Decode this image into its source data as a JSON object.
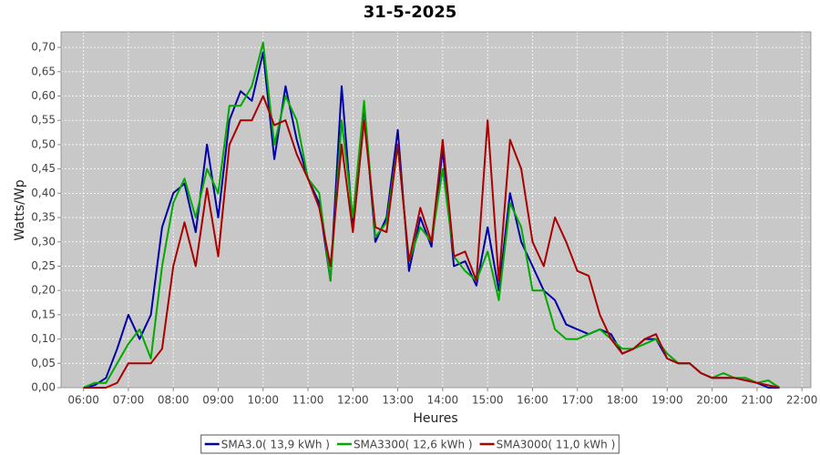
{
  "chart_data": {
    "type": "line",
    "title": "31-5-2025",
    "x_label": "Heures",
    "y_label": "Watts/Wp",
    "x": [
      6,
      6.25,
      6.5,
      6.75,
      7,
      7.25,
      7.5,
      7.75,
      8,
      8.25,
      8.5,
      8.75,
      9,
      9.25,
      9.5,
      9.75,
      10,
      10.25,
      10.5,
      10.75,
      11,
      11.25,
      11.5,
      11.75,
      12,
      12.25,
      12.5,
      12.75,
      13,
      13.25,
      13.5,
      13.75,
      14,
      14.25,
      14.5,
      14.75,
      15,
      15.25,
      15.5,
      15.75,
      16,
      16.25,
      16.5,
      16.75,
      17,
      17.25,
      17.5,
      17.75,
      18,
      18.25,
      18.5,
      18.75,
      19,
      19.25,
      19.5,
      19.75,
      20,
      20.25,
      20.5,
      20.75,
      21,
      21.25,
      21.5
    ],
    "series": [
      {
        "name": "SMA3.0( 13,9 kWh )",
        "color": "#0000aa",
        "values": [
          0,
          0.005,
          0.02,
          0.08,
          0.15,
          0.1,
          0.15,
          0.33,
          0.4,
          0.42,
          0.32,
          0.5,
          0.35,
          0.55,
          0.61,
          0.59,
          0.69,
          0.47,
          0.62,
          0.51,
          0.43,
          0.38,
          0.22,
          0.62,
          0.33,
          0.58,
          0.3,
          0.35,
          0.53,
          0.24,
          0.35,
          0.29,
          0.49,
          0.25,
          0.26,
          0.21,
          0.33,
          0.2,
          0.4,
          0.3,
          0.25,
          0.2,
          0.18,
          0.13,
          0.12,
          0.11,
          0.12,
          0.11,
          0.07,
          0.08,
          0.1,
          0.1,
          0.06,
          0.05,
          0.05,
          0.03,
          0.02,
          0.02,
          0.02,
          0.015,
          0.01,
          0,
          0
        ]
      },
      {
        "name": "SMA3300( 12,6 kWh )",
        "color": "#00aa00",
        "values": [
          0,
          0.01,
          0.01,
          0.05,
          0.09,
          0.12,
          0.06,
          0.25,
          0.38,
          0.43,
          0.35,
          0.45,
          0.4,
          0.58,
          0.58,
          0.62,
          0.71,
          0.5,
          0.6,
          0.55,
          0.43,
          0.4,
          0.22,
          0.55,
          0.35,
          0.59,
          0.31,
          0.34,
          0.5,
          0.26,
          0.33,
          0.3,
          0.45,
          0.27,
          0.24,
          0.22,
          0.28,
          0.18,
          0.38,
          0.33,
          0.2,
          0.2,
          0.12,
          0.1,
          0.1,
          0.11,
          0.12,
          0.1,
          0.08,
          0.08,
          0.09,
          0.1,
          0.07,
          0.05,
          0.05,
          0.03,
          0.02,
          0.03,
          0.02,
          0.02,
          0.01,
          0.015,
          0
        ]
      },
      {
        "name": "SMA3000( 11,0 kWh )",
        "color": "#aa0000",
        "values": [
          0,
          0,
          0,
          0.01,
          0.05,
          0.05,
          0.05,
          0.08,
          0.25,
          0.34,
          0.25,
          0.41,
          0.27,
          0.5,
          0.55,
          0.55,
          0.6,
          0.54,
          0.55,
          0.48,
          0.43,
          0.37,
          0.25,
          0.5,
          0.32,
          0.55,
          0.33,
          0.32,
          0.5,
          0.26,
          0.37,
          0.3,
          0.51,
          0.27,
          0.28,
          0.22,
          0.55,
          0.22,
          0.51,
          0.45,
          0.3,
          0.25,
          0.35,
          0.3,
          0.24,
          0.23,
          0.15,
          0.1,
          0.07,
          0.08,
          0.1,
          0.11,
          0.06,
          0.05,
          0.05,
          0.03,
          0.02,
          0.02,
          0.02,
          0.015,
          0.01,
          0.005,
          0
        ]
      }
    ],
    "xlim": [
      5.5,
      22.2
    ],
    "xticks": [
      {
        "value": 6,
        "label": "06:00"
      },
      {
        "value": 7,
        "label": "07:00"
      },
      {
        "value": 8,
        "label": "08:00"
      },
      {
        "value": 9,
        "label": "09:00"
      },
      {
        "value": 10,
        "label": "10:00"
      },
      {
        "value": 11,
        "label": "11:00"
      },
      {
        "value": 12,
        "label": "12:00"
      },
      {
        "value": 13,
        "label": "13:00"
      },
      {
        "value": 14,
        "label": "14:00"
      },
      {
        "value": 15,
        "label": "15:00"
      },
      {
        "value": 16,
        "label": "16:00"
      },
      {
        "value": 17,
        "label": "17:00"
      },
      {
        "value": 18,
        "label": "18:00"
      },
      {
        "value": 19,
        "label": "19:00"
      },
      {
        "value": 20,
        "label": "20:00"
      },
      {
        "value": 21,
        "label": "21:00"
      },
      {
        "value": 22,
        "label": "22:00"
      }
    ],
    "ylim": [
      0,
      0.732
    ],
    "yticks": [
      {
        "value": 0,
        "label": "0,00"
      },
      {
        "value": 0.05,
        "label": "0,05"
      },
      {
        "value": 0.1,
        "label": "0,10"
      },
      {
        "value": 0.15,
        "label": "0,15"
      },
      {
        "value": 0.2,
        "label": "0,20"
      },
      {
        "value": 0.25,
        "label": "0,25"
      },
      {
        "value": 0.3,
        "label": "0,30"
      },
      {
        "value": 0.35,
        "label": "0,35"
      },
      {
        "value": 0.4,
        "label": "0,40"
      },
      {
        "value": 0.45,
        "label": "0,45"
      },
      {
        "value": 0.5,
        "label": "0,50"
      },
      {
        "value": 0.55,
        "label": "0,55"
      },
      {
        "value": 0.6,
        "label": "0,60"
      },
      {
        "value": 0.65,
        "label": "0,65"
      },
      {
        "value": 0.7,
        "label": "0,70"
      }
    ],
    "grid": true,
    "legend": "bottom"
  }
}
